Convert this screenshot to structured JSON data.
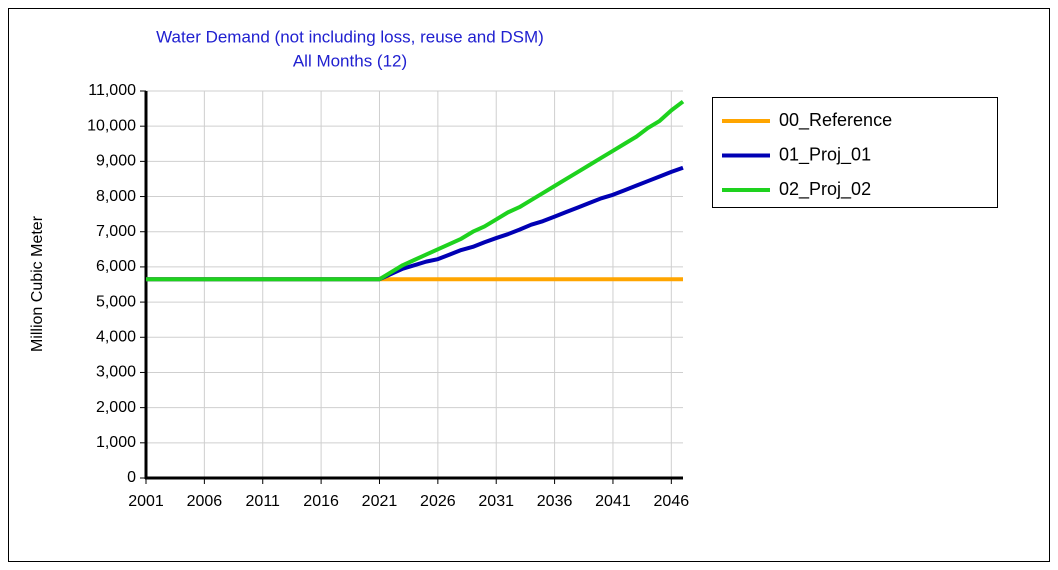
{
  "chart_data": {
    "type": "line",
    "title": "Water Demand (not including loss, reuse and DSM)",
    "subtitle": "All Months (12)",
    "y_label": "Million Cubic Meter",
    "x": [
      2001,
      2002,
      2003,
      2004,
      2005,
      2006,
      2007,
      2008,
      2009,
      2010,
      2011,
      2012,
      2013,
      2014,
      2015,
      2016,
      2017,
      2018,
      2019,
      2020,
      2021,
      2022,
      2023,
      2024,
      2025,
      2026,
      2027,
      2028,
      2029,
      2030,
      2031,
      2032,
      2033,
      2034,
      2035,
      2036,
      2037,
      2038,
      2039,
      2040,
      2041,
      2042,
      2043,
      2044,
      2045,
      2046,
      2047
    ],
    "series": [
      {
        "name": "00_Reference",
        "color": "#ffa500",
        "values": [
          5650,
          5650,
          5650,
          5650,
          5650,
          5650,
          5650,
          5650,
          5650,
          5650,
          5650,
          5650,
          5650,
          5650,
          5650,
          5650,
          5650,
          5650,
          5650,
          5650,
          5650,
          5650,
          5650,
          5650,
          5650,
          5650,
          5650,
          5650,
          5650,
          5650,
          5650,
          5650,
          5650,
          5650,
          5650,
          5650,
          5650,
          5650,
          5650,
          5650,
          5650,
          5650,
          5650,
          5650,
          5650,
          5650,
          5650
        ]
      },
      {
        "name": "01_Proj_01",
        "color": "#0000b4",
        "values": [
          5650,
          5650,
          5650,
          5650,
          5650,
          5650,
          5650,
          5650,
          5650,
          5650,
          5650,
          5650,
          5650,
          5650,
          5650,
          5650,
          5650,
          5650,
          5650,
          5650,
          5650,
          5800,
          5950,
          6050,
          6150,
          6220,
          6350,
          6480,
          6570,
          6700,
          6820,
          6930,
          7060,
          7200,
          7300,
          7430,
          7560,
          7690,
          7820,
          7950,
          8050,
          8180,
          8310,
          8440,
          8570,
          8700,
          8820
        ]
      },
      {
        "name": "02_Proj_02",
        "color": "#1ed21e",
        "values": [
          5650,
          5650,
          5650,
          5650,
          5650,
          5650,
          5650,
          5650,
          5650,
          5650,
          5650,
          5650,
          5650,
          5650,
          5650,
          5650,
          5650,
          5650,
          5650,
          5650,
          5650,
          5850,
          6050,
          6200,
          6350,
          6500,
          6650,
          6800,
          7000,
          7150,
          7350,
          7550,
          7700,
          7900,
          8100,
          8300,
          8500,
          8700,
          8900,
          9100,
          9300,
          9500,
          9700,
          9950,
          10150,
          10450,
          10700
        ]
      }
    ],
    "xlim": [
      2001,
      2047
    ],
    "xticks": [
      2001,
      2006,
      2011,
      2016,
      2021,
      2026,
      2031,
      2036,
      2041,
      2046
    ],
    "ylim": [
      0,
      11000
    ],
    "yticks": [
      0,
      {
        "value": 1000,
        "label": "1,000"
      },
      {
        "value": 2000,
        "label": "2,000"
      },
      {
        "value": 3000,
        "label": "3,000"
      },
      {
        "value": 4000,
        "label": "4,000"
      },
      {
        "value": 5000,
        "label": "5,000"
      },
      {
        "value": 6000,
        "label": "6,000"
      },
      {
        "value": 7000,
        "label": "7,000"
      },
      {
        "value": 8000,
        "label": "8,000"
      },
      {
        "value": 9000,
        "label": "9,000"
      },
      {
        "value": 10000,
        "label": "10,000"
      },
      {
        "value": 11000,
        "label": "11,000"
      }
    ],
    "grid": true
  }
}
